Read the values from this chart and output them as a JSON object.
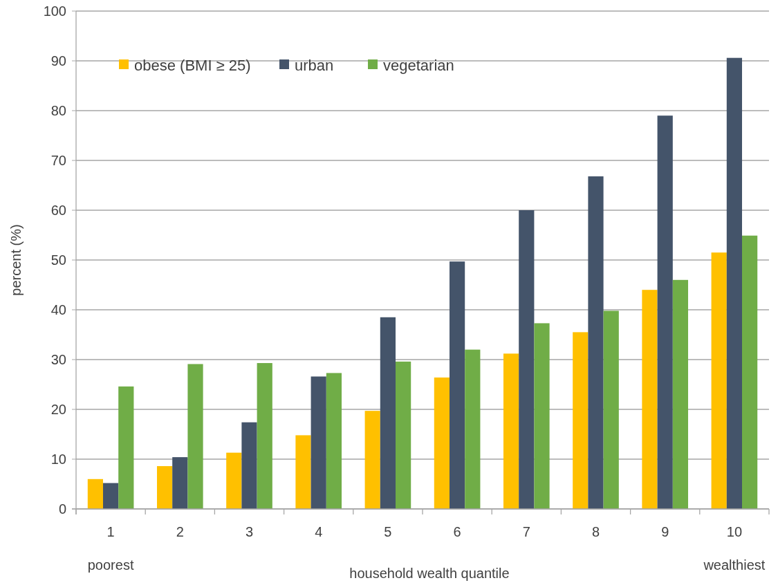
{
  "chart_data": {
    "type": "bar",
    "xlabel": "household wealth quantile",
    "ylabel": "percent (%)",
    "categories": [
      "1",
      "2",
      "3",
      "4",
      "5",
      "6",
      "7",
      "8",
      "9",
      "10"
    ],
    "series": [
      {
        "name": "obese (BMI ≥ 25)",
        "color": "#ffc000",
        "values": [
          6,
          8.6,
          11.3,
          14.8,
          19.7,
          26.4,
          31.2,
          35.5,
          44,
          51.5
        ]
      },
      {
        "name": "urban",
        "color": "#44546a",
        "values": [
          5.2,
          10.4,
          17.4,
          26.6,
          38.5,
          49.7,
          60,
          66.8,
          79,
          90.6
        ]
      },
      {
        "name": "vegetarian",
        "color": "#70ad47",
        "values": [
          24.6,
          29.1,
          29.3,
          27.3,
          29.6,
          32,
          37.3,
          39.8,
          46,
          54.9
        ]
      }
    ],
    "ylim": [
      0,
      100
    ],
    "yticks": [
      0,
      10,
      20,
      30,
      40,
      50,
      60,
      70,
      80,
      90,
      100
    ],
    "grid": "y",
    "legend": "top left",
    "annotations": [
      "poorest",
      "wealthiest"
    ]
  }
}
